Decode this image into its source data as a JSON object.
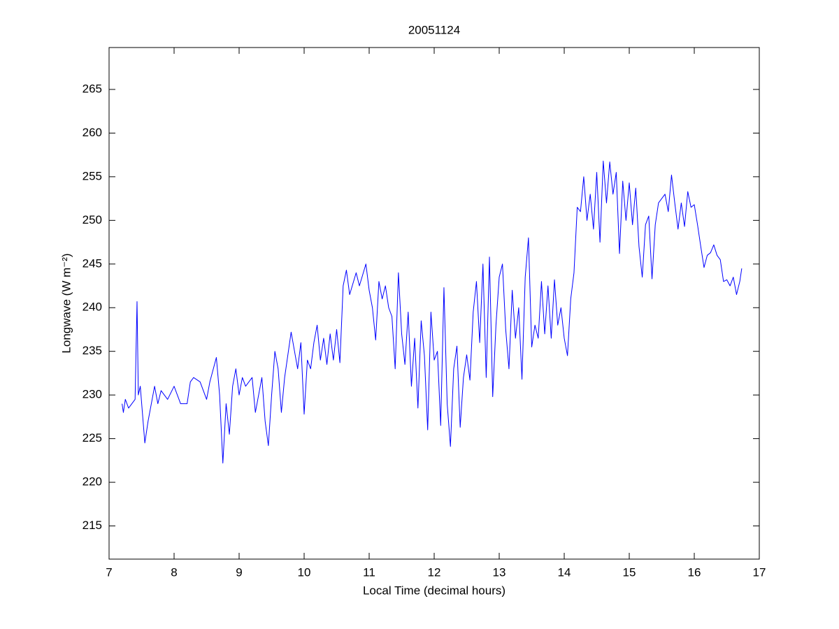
{
  "chart_data": {
    "type": "line",
    "title": "20051124",
    "xlabel": "Local Time (decimal hours)",
    "ylabel": "Longwave (W m⁻²)",
    "xlim": [
      7,
      17
    ],
    "xticks": [
      7,
      8,
      9,
      10,
      11,
      12,
      13,
      14,
      15,
      16,
      17
    ],
    "ylim": [
      211.2,
      269.8
    ],
    "yticks": [
      215,
      220,
      225,
      230,
      235,
      240,
      245,
      250,
      255,
      260,
      265
    ],
    "grid": false,
    "x": [
      7.2,
      7.22,
      7.25,
      7.3,
      7.35,
      7.4,
      7.43,
      7.45,
      7.48,
      7.55,
      7.6,
      7.7,
      7.75,
      7.8,
      7.9,
      8.0,
      8.1,
      8.2,
      8.25,
      8.3,
      8.4,
      8.5,
      8.55,
      8.65,
      8.7,
      8.75,
      8.8,
      8.85,
      8.9,
      8.95,
      9.0,
      9.05,
      9.1,
      9.2,
      9.25,
      9.3,
      9.35,
      9.4,
      9.45,
      9.5,
      9.55,
      9.6,
      9.65,
      9.7,
      9.8,
      9.9,
      9.95,
      10.0,
      10.05,
      10.1,
      10.15,
      10.2,
      10.25,
      10.3,
      10.35,
      10.4,
      10.45,
      10.5,
      10.55,
      10.6,
      10.65,
      10.7,
      10.8,
      10.85,
      10.95,
      11.0,
      11.05,
      11.1,
      11.15,
      11.2,
      11.25,
      11.3,
      11.35,
      11.4,
      11.45,
      11.5,
      11.55,
      11.6,
      11.65,
      11.7,
      11.75,
      11.8,
      11.85,
      11.9,
      11.95,
      12.0,
      12.05,
      12.1,
      12.15,
      12.2,
      12.25,
      12.3,
      12.35,
      12.4,
      12.45,
      12.5,
      12.55,
      12.6,
      12.65,
      12.7,
      12.75,
      12.8,
      12.85,
      12.9,
      12.95,
      13.0,
      13.05,
      13.1,
      13.15,
      13.2,
      13.25,
      13.3,
      13.35,
      13.4,
      13.45,
      13.5,
      13.55,
      13.6,
      13.65,
      13.7,
      13.75,
      13.8,
      13.85,
      13.9,
      13.95,
      14.0,
      14.05,
      14.1,
      14.15,
      14.2,
      14.25,
      14.3,
      14.35,
      14.4,
      14.45,
      14.5,
      14.55,
      14.6,
      14.65,
      14.7,
      14.75,
      14.8,
      14.85,
      14.9,
      14.95,
      15.0,
      15.05,
      15.1,
      15.15,
      15.2,
      15.25,
      15.3,
      15.35,
      15.4,
      15.45,
      15.5,
      15.55,
      15.6,
      15.65,
      15.7,
      15.75,
      15.8,
      15.85,
      15.9,
      15.95,
      16.0,
      16.05,
      16.1,
      16.15,
      16.2,
      16.25,
      16.3,
      16.35,
      16.4,
      16.45,
      16.5,
      16.55,
      16.6,
      16.65,
      16.7,
      16.73
    ],
    "series": [
      {
        "name": "Longwave",
        "color": "#0000ff",
        "values": [
          229,
          228,
          229.5,
          228.5,
          229,
          229.5,
          240.7,
          230,
          231,
          224.5,
          227,
          231,
          229,
          230.5,
          229.5,
          231,
          229,
          229,
          231.5,
          232,
          231.5,
          229.5,
          231.5,
          234.3,
          230,
          222.2,
          229,
          225.5,
          231,
          233,
          230,
          232,
          231,
          232,
          228,
          230,
          232,
          227,
          224.2,
          230,
          235,
          233,
          228,
          232,
          237.2,
          233,
          236,
          227.8,
          234,
          233,
          236,
          238,
          234,
          236.5,
          233.5,
          237,
          234,
          237.5,
          233.7,
          242.5,
          244.3,
          241.5,
          244,
          242.5,
          245,
          242,
          240,
          236.3,
          243,
          241,
          242.5,
          240,
          239,
          233,
          244,
          237,
          233.5,
          239.5,
          231,
          236.5,
          228.5,
          238.5,
          234.5,
          226,
          239.5,
          234,
          235,
          226.5,
          242.3,
          229,
          224.1,
          233,
          235.6,
          226.3,
          232,
          234.6,
          231.7,
          239.5,
          243,
          236,
          245,
          232,
          245.8,
          229.8,
          238,
          243.5,
          245,
          237.5,
          233,
          242,
          236.5,
          240,
          231.8,
          243.5,
          248,
          235.5,
          238,
          236.5,
          243,
          237,
          242.5,
          236.5,
          243.2,
          238,
          240,
          236.5,
          234.5,
          241,
          244,
          251.5,
          251,
          255,
          250,
          253,
          249,
          255.5,
          247.5,
          256.8,
          252,
          256.7,
          253,
          255.5,
          246.2,
          254.5,
          250,
          254.3,
          249.5,
          253.7,
          247,
          243.5,
          249.5,
          250.5,
          243.3,
          249.5,
          252,
          252.5,
          253,
          251,
          255.2,
          252,
          249,
          252,
          249.3,
          253.3,
          251.5,
          251.8,
          249.5,
          247,
          244.6,
          246,
          246.3,
          247.2,
          246,
          245.5,
          243,
          243.2,
          242.5,
          243.5,
          241.5,
          243,
          244.5
        ]
      }
    ]
  }
}
